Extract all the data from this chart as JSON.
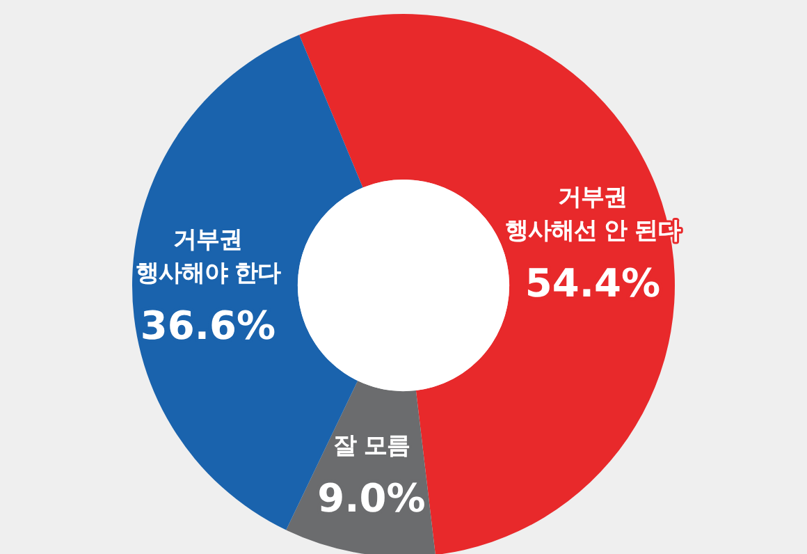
{
  "chart_data": {
    "type": "donut",
    "categories": [
      "거부권 행사해선 안 된다",
      "잘 모름",
      "거부권 행사해야 한다"
    ],
    "values": [
      54.4,
      9.0,
      36.6
    ],
    "colors": [
      "#e8292b",
      "#6b6c6e",
      "#1a63ad"
    ],
    "value_labels": [
      "54.4%",
      "9.0%",
      "36.6%"
    ]
  }
}
